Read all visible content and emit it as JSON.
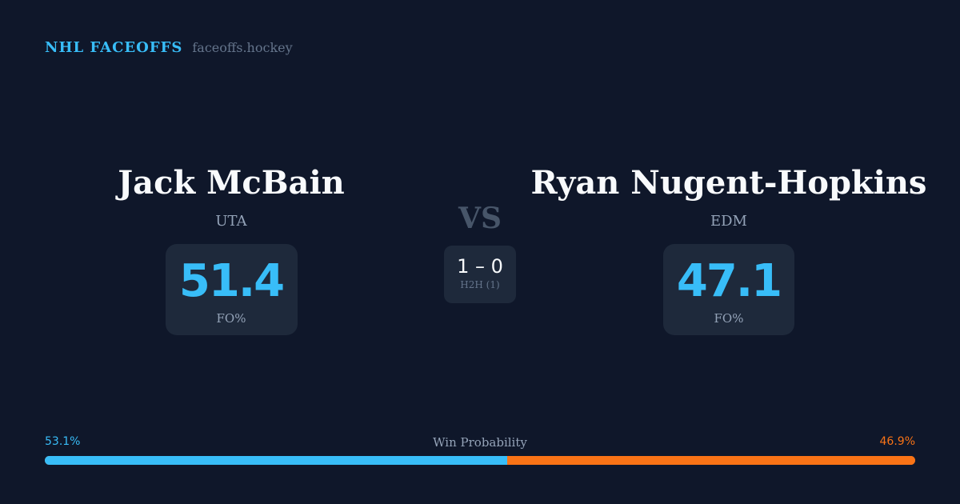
{
  "brand": {
    "title": "NHL FACEOFFS",
    "domain": "faceoffs.hockey"
  },
  "left": {
    "name": "Jack McBain",
    "team": "UTA",
    "fo_pct": "51.4",
    "fo_label": "FO%"
  },
  "right": {
    "name": "Ryan Nugent-Hopkins",
    "team": "EDM",
    "fo_pct": "47.1",
    "fo_label": "FO%"
  },
  "versus": {
    "label": "VS",
    "score": "1 – 0",
    "h2h": "H2H (1)"
  },
  "win_probability": {
    "label": "Win Probability",
    "left": "53.1%",
    "right": "46.9%",
    "left_value": 53.1,
    "right_value": 46.9,
    "left_color": "#38bdf8",
    "right_color": "#f97316"
  }
}
